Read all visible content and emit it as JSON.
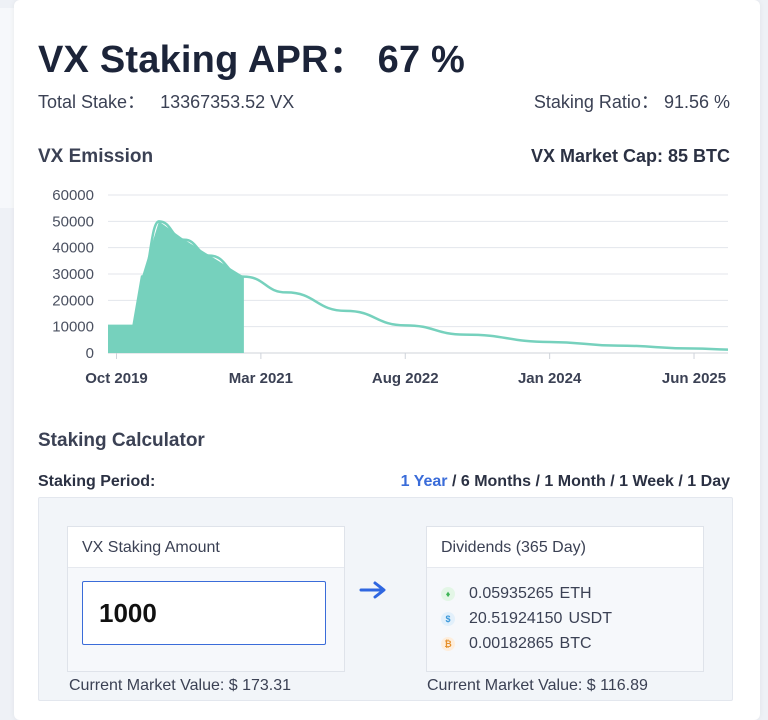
{
  "header": {
    "title": "VX Staking APR： 67 %",
    "total_stake_label": "Total Stake：",
    "total_stake_value": "13367353.52 VX",
    "staking_ratio_label": "Staking Ratio：",
    "staking_ratio_value": "91.56 %"
  },
  "emission": {
    "title": "VX Emission",
    "market_cap": "VX Market Cap: 85 BTC"
  },
  "chart_data": {
    "type": "area",
    "title": "",
    "xlabel": "",
    "ylabel": "",
    "ylim": [
      0,
      60000
    ],
    "y_ticks": [
      "0",
      "10000",
      "20000",
      "30000",
      "40000",
      "50000",
      "60000"
    ],
    "x_tick_labels": [
      "Oct 2019",
      "Mar 2021",
      "Aug 2022",
      "Jan 2024",
      "Jun 2025"
    ],
    "x": [
      "2019-09",
      "2019-12",
      "2020-01",
      "2020-03",
      "2020-06",
      "2020-09",
      "2021-01",
      "2021-06",
      "2022-01",
      "2022-08",
      "2023-03",
      "2024-01",
      "2024-09",
      "2025-06",
      "2025-10"
    ],
    "series": [
      {
        "values": [
          10300,
          10300,
          29000,
          50000,
          43000,
          37000,
          29000,
          23000,
          16000,
          10500,
          7000,
          4200,
          2800,
          1700,
          1300
        ]
      }
    ],
    "filled_until": "2021-01",
    "fill_color": "#76d1bd",
    "line_color": "#76d1bd",
    "grid": true
  },
  "calculator": {
    "title": "Staking Calculator",
    "period_label": "Staking Period:",
    "periods": [
      "1 Year",
      "6 Months",
      "1 Month",
      "1 Week",
      "1 Day"
    ],
    "period_separator": " / ",
    "active_period": "1 Year",
    "amount_box_title": "VX Staking Amount",
    "amount_value": "1000",
    "dividends_box_title": "Dividends (365 Day)",
    "dividends": [
      {
        "coin": "ETH",
        "value": "0.05935265",
        "icon": "eth-icon"
      },
      {
        "coin": "USDT",
        "value": "20.51924150",
        "icon": "usdt-icon"
      },
      {
        "coin": "BTC",
        "value": "0.00182865",
        "icon": "btc-icon"
      }
    ],
    "left_market_value": "Current Market Value: $ 173.31",
    "right_market_value": "Current Market Value: $ 116.89"
  },
  "colors": {
    "accent": "#3a6cd9",
    "chart": "#76d1bd",
    "title": "#1c2439"
  }
}
